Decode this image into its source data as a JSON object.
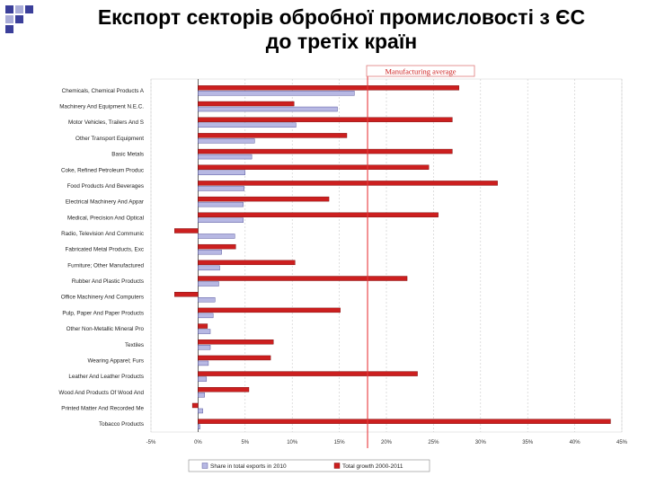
{
  "slide": {
    "title_line1": "Експорт секторів обробної промисловості з ЄС",
    "title_line2": "до третіх країн"
  },
  "colors": {
    "share": "#b7b8e3",
    "share_stroke": "#3c3c8c",
    "growth": "#cc1f1f",
    "growth_stroke": "#6e0000",
    "average_line": "#e8383d",
    "average_box": "#e07a7a",
    "title_deco_dark": "#3b3f9a",
    "title_deco_light": "#a9acd8"
  },
  "chart_data": {
    "type": "bar",
    "orientation": "horizontal",
    "categories": [
      "Chemicals, Chemical Products A",
      "Machinery And Equipment N.E.C.",
      "Motor Vehicles, Trailers And S",
      "Other Transport Equipment",
      "Basic Metals",
      "Coke, Refined Petroleum Produc",
      "Food Products And Beverages",
      "Electrical Machinery And Appar",
      "Medical, Precision And Optical",
      "Radio, Television And Communic",
      "Fabricated Metal Products, Exc",
      "Furniture; Other Manufactured",
      "Rubber And Plastic Products",
      "Office Machinery And Computers",
      "Pulp, Paper And Paper Products",
      "Other Non-Metallic Mineral Pro",
      "Textiles",
      "Wearing Apparel; Furs",
      "Leather And Leather Products",
      "Wood And Products Of Wood And",
      "Printed Matter And Recorded Me",
      "Tobacco Products"
    ],
    "series": [
      {
        "name": "Share in total exports in 2010",
        "values": [
          16.6,
          14.8,
          10.4,
          6.0,
          5.7,
          5.0,
          4.9,
          4.8,
          4.8,
          3.9,
          2.5,
          2.3,
          2.2,
          1.8,
          1.6,
          1.3,
          1.3,
          1.1,
          0.9,
          0.7,
          0.5,
          0.2
        ]
      },
      {
        "name": "Total growth 2000-2011",
        "values": [
          27.7,
          10.2,
          27.0,
          15.8,
          27.0,
          24.5,
          31.8,
          13.9,
          25.5,
          -2.5,
          4.0,
          10.3,
          22.2,
          -2.5,
          15.1,
          1.0,
          8.0,
          7.7,
          23.3,
          5.4,
          -0.6,
          43.8
        ]
      }
    ],
    "average": {
      "label": "Manufacturing average",
      "value": 18.0
    },
    "xlim": [
      -5,
      45
    ],
    "xticks": [
      "-5%",
      "0%",
      "5%",
      "10%",
      "15%",
      "20%",
      "25%",
      "30%",
      "35%",
      "40%",
      "45%"
    ],
    "grid": true,
    "legend_position": "bottom"
  }
}
